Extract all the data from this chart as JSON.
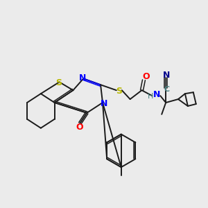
{
  "bg_color": "#ebebeb",
  "colors": {
    "S": "#b8b800",
    "N": "#0000ff",
    "O": "#ff0000",
    "C_teal": "#4a8080",
    "N_dark": "#00008b",
    "bond": "#1a1a1a"
  },
  "lw": 1.4,
  "lw2": 1.1
}
